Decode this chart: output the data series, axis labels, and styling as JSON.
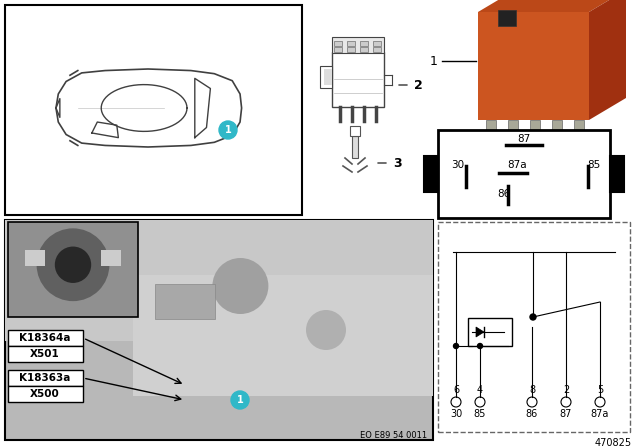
{
  "bg_color": "#ffffff",
  "title_number": "470825",
  "eo_text": "EO E89 54 0011",
  "relay_orange": "#cc5520",
  "relay_orange_mid": "#bb4818",
  "relay_orange_dark": "#a03010",
  "relay_metal": "#a8a898",
  "relay_metal_dark": "#888878",
  "teal_color": "#30b8c8",
  "car_line_color": "#505050",
  "photo_bg_light": "#c8c8c8",
  "photo_bg_mid": "#b0b0b0",
  "photo_bg_dark": "#909090",
  "inset_bg": "#787878",
  "label_k1": "K18364a",
  "label_x1": "X501",
  "label_k2": "K18363a",
  "label_x2": "X500",
  "eo_fontsize": 6,
  "title_fontsize": 7,
  "pin_label_fontsize": 7.5,
  "schematic_pin_top": [
    "6",
    "4",
    "8",
    "2",
    "5"
  ],
  "schematic_pin_bot": [
    "30",
    "85",
    "86",
    "87",
    "87a"
  ],
  "pinbox_labels": [
    "87",
    "30",
    "87a",
    "85",
    "86"
  ]
}
